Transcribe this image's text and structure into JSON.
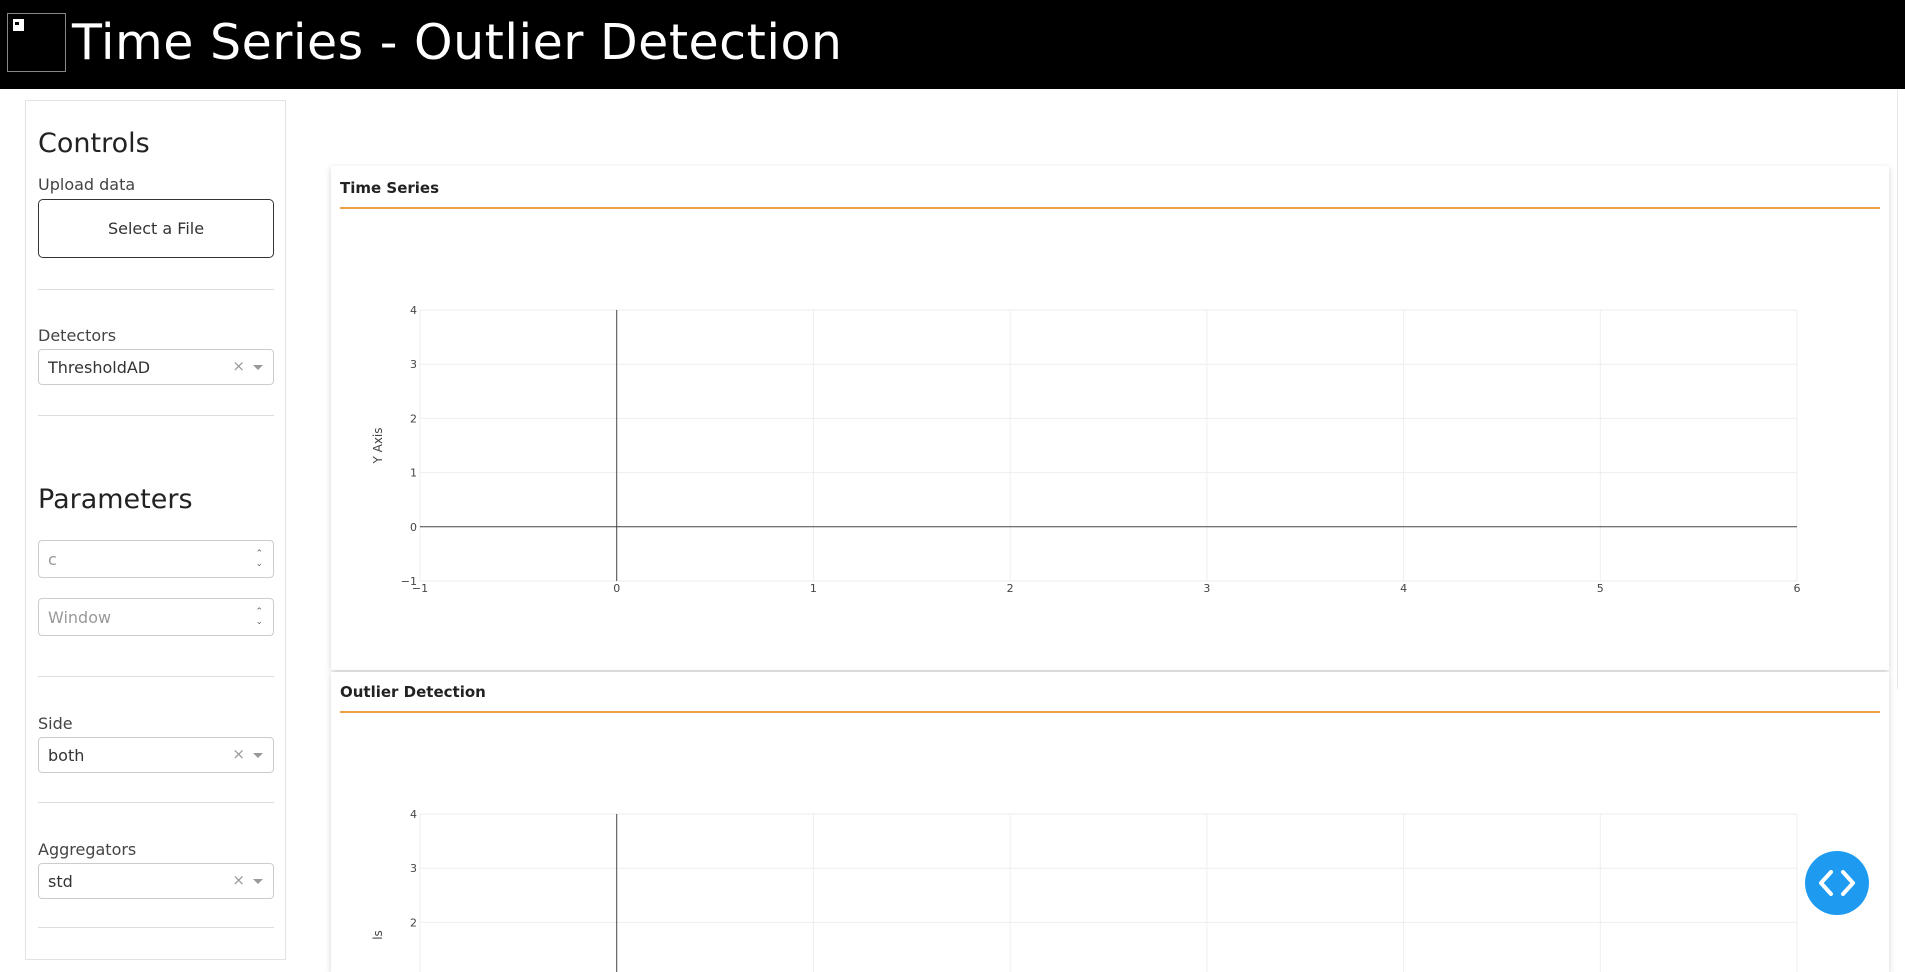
{
  "header": {
    "title": "Time Series - Outlier Detection",
    "logo_icon": "app-logo-icon"
  },
  "sidebar": {
    "controls_heading": "Controls",
    "upload_label": "Upload data",
    "upload_button": "Select a File",
    "detectors_label": "Detectors",
    "detectors_value": "ThresholdAD",
    "parameters_heading": "Parameters",
    "c_placeholder": "c",
    "window_placeholder": "Window",
    "side_label": "Side",
    "side_value": "both",
    "aggregators_label": "Aggregators",
    "aggregators_value": "std",
    "clear_symbol": "×"
  },
  "cards": {
    "time_series_title": "Time Series",
    "outlier_title": "Outlier Detection"
  },
  "chart_data": [
    {
      "type": "line",
      "title": "Time Series",
      "xlabel": "",
      "ylabel": "Y Axis",
      "xlim": [
        -1,
        6
      ],
      "ylim": [
        -1,
        4
      ],
      "x_ticks": [
        "−1",
        "0",
        "1",
        "2",
        "3",
        "4",
        "5",
        "6"
      ],
      "y_ticks": [
        "−1",
        "0",
        "1",
        "2",
        "3",
        "4"
      ],
      "series": []
    },
    {
      "type": "line",
      "title": "Outlier Detection",
      "xlabel": "",
      "ylabel": "ls",
      "xlim": [
        -1,
        6
      ],
      "ylim": [
        -1,
        4
      ],
      "y_ticks_visible": [
        "2",
        "3",
        "4"
      ],
      "series": []
    }
  ],
  "colors": {
    "accent_line": "#f0a040",
    "fab": "#1e9bf0",
    "header_bg": "#000000"
  }
}
